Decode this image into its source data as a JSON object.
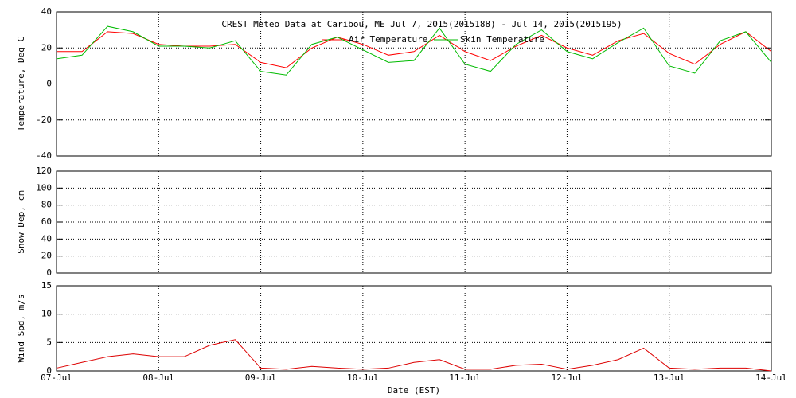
{
  "chart_data": [
    {
      "type": "line",
      "title": "CREST Meteo Data at Caribou, ME   Jul  7, 2015(2015188) - Jul 14, 2015(2015195)",
      "ylabel": "Temperature, Deg C",
      "x": [
        0,
        0.25,
        0.5,
        0.75,
        1,
        1.25,
        1.5,
        1.75,
        2,
        2.25,
        2.5,
        2.75,
        3,
        3.25,
        3.5,
        3.75,
        4,
        4.25,
        4.5,
        4.75,
        5,
        5.25,
        5.5,
        5.75,
        6,
        6.25,
        6.5,
        6.75,
        7
      ],
      "series": [
        {
          "name": "Air Temperature",
          "color": "#ff0000",
          "values": [
            18,
            18,
            29,
            28,
            22,
            21,
            21,
            22,
            12,
            9,
            20,
            26,
            22,
            16,
            18,
            27,
            18,
            13,
            21,
            27,
            20,
            16,
            24,
            28,
            17,
            11,
            22,
            29,
            18
          ]
        },
        {
          "name": "Skin Temperature",
          "color": "#00bb00",
          "values": [
            14,
            16,
            32,
            29,
            21,
            21,
            20,
            24,
            7,
            5,
            22,
            26,
            19,
            12,
            13,
            31,
            11,
            7,
            22,
            30,
            18,
            14,
            23,
            31,
            10,
            6,
            24,
            29,
            12
          ]
        }
      ],
      "xlim": [
        0,
        7
      ],
      "xticks": [
        0,
        1,
        2,
        3,
        4,
        5,
        6,
        7
      ],
      "ylim": [
        -40,
        40
      ],
      "yticks": [
        -40,
        -20,
        0,
        20,
        40
      ],
      "grid": true
    },
    {
      "type": "line",
      "ylabel": "Snow Dep, cm",
      "series": [],
      "xlim": [
        0,
        7
      ],
      "xticks": [
        0,
        1,
        2,
        3,
        4,
        5,
        6,
        7
      ],
      "ylim": [
        0,
        120
      ],
      "yticks": [
        0,
        20,
        40,
        60,
        80,
        100,
        120
      ],
      "grid": true
    },
    {
      "type": "line",
      "ylabel": "Wind Spd, m/s",
      "xlabel": "Date (EST)",
      "x": [
        0,
        0.25,
        0.5,
        0.75,
        1,
        1.25,
        1.5,
        1.75,
        2,
        2.25,
        2.5,
        2.75,
        3,
        3.25,
        3.5,
        3.75,
        4,
        4.25,
        4.5,
        4.75,
        5,
        5.25,
        5.5,
        5.75,
        6,
        6.25,
        6.5,
        6.75,
        7
      ],
      "series": [
        {
          "name": "Wind Speed",
          "color": "#dd0000",
          "values": [
            0.5,
            1.5,
            2.5,
            3,
            2.5,
            2.5,
            4.5,
            5.5,
            0.5,
            0.3,
            0.8,
            0.5,
            0.3,
            0.5,
            1.5,
            2,
            0.3,
            0.3,
            1,
            1.2,
            0.3,
            1,
            2,
            4,
            0.5,
            0.3,
            0.5,
            0.5,
            0
          ]
        }
      ],
      "xlim": [
        0,
        7
      ],
      "xticks": [
        {
          "value": 0,
          "label": "07-Jul"
        },
        {
          "value": 1,
          "label": "08-Jul"
        },
        {
          "value": 2,
          "label": "09-Jul"
        },
        {
          "value": 3,
          "label": "10-Jul"
        },
        {
          "value": 4,
          "label": "11-Jul"
        },
        {
          "value": 5,
          "label": "12-Jul"
        },
        {
          "value": 6,
          "label": "13-Jul"
        },
        {
          "value": 7,
          "label": "14-Jul"
        }
      ],
      "ylim": [
        0,
        15
      ],
      "yticks": [
        0,
        5,
        10,
        15
      ],
      "grid": true,
      "legend": false
    }
  ]
}
